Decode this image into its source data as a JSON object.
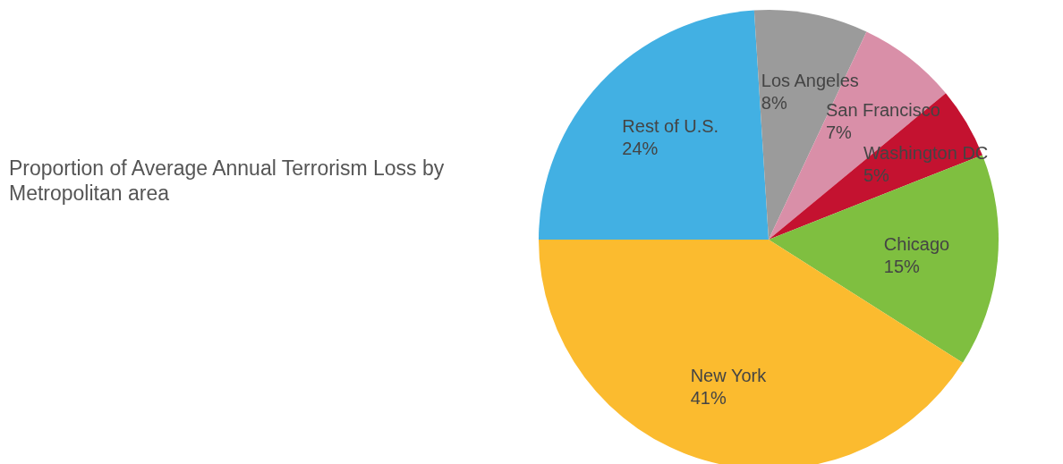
{
  "chart_data": {
    "type": "pie",
    "title": "Proportion of Average Annual Terrorism Loss by Metropolitan area",
    "categories": [
      "Rest of U.S.",
      "Los Angeles",
      "San Francisco",
      "Washington DC",
      "Chicago",
      "New York"
    ],
    "values": [
      24,
      8,
      7,
      5,
      15,
      41
    ],
    "colors": [
      "#42b0e3",
      "#9b9b9b",
      "#d98fa8",
      "#c41230",
      "#7fbf40",
      "#fbbb2f"
    ],
    "value_labels": [
      "24%",
      "8%",
      "7%",
      "5%",
      "15%",
      "41%"
    ]
  }
}
